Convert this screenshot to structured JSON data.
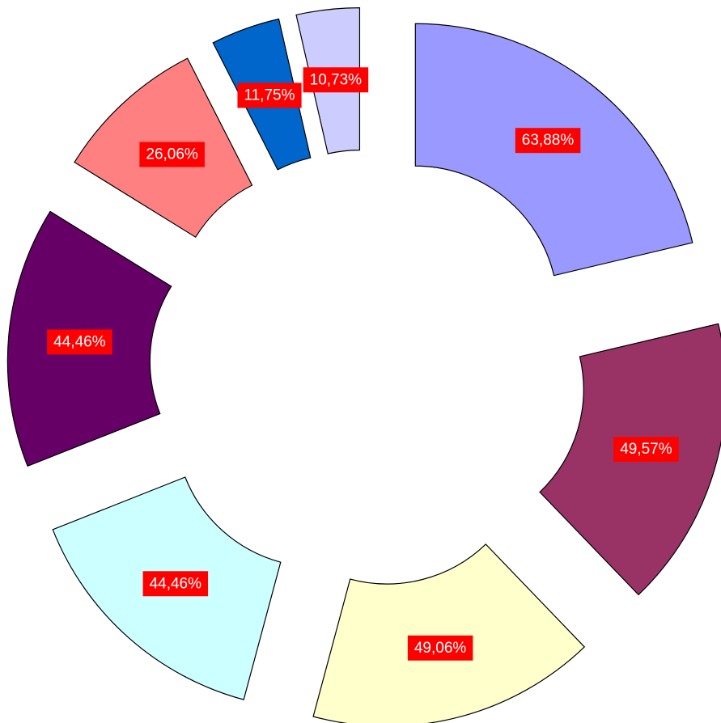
{
  "chart_data": {
    "type": "donut",
    "values": [
      63.88,
      49.57,
      49.06,
      44.46,
      44.46,
      26.06,
      11.75,
      10.73
    ],
    "value_labels": [
      "63,88%",
      "49,57%",
      "49,06%",
      "44,46%",
      "44,46%",
      "26,06%",
      "11,75%",
      "10,73%"
    ],
    "colors": [
      "#9999ff",
      "#993366",
      "#ffffcc",
      "#ccffff",
      "#660066",
      "#ff8080",
      "#0066cc",
      "#ccccff"
    ],
    "label_background": "#ff0000"
  }
}
